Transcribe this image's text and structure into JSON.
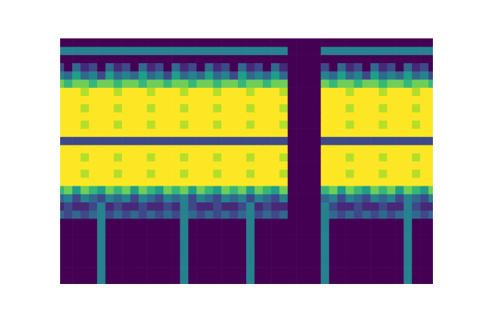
{
  "chart_data": {
    "type": "heatmap",
    "tick_labels": false,
    "grid": false,
    "clim": [
      0,
      9
    ],
    "cells": [
      [
        0,
        0,
        0,
        0,
        0,
        0,
        0,
        0,
        0,
        0,
        0,
        0,
        0,
        0,
        0,
        0,
        0,
        0,
        0,
        0,
        0,
        0,
        0,
        0,
        0,
        0,
        0,
        0,
        0,
        0,
        0,
        0,
        0,
        0,
        0,
        0,
        0,
        0,
        0,
        0,
        0,
        0,
        0,
        0,
        0,
        0
      ],
      [
        4,
        4,
        4,
        4,
        4,
        4,
        4,
        4,
        4,
        4,
        4,
        4,
        4,
        4,
        4,
        4,
        4,
        4,
        4,
        4,
        4,
        4,
        4,
        4,
        4,
        4,
        4,
        4,
        0,
        0,
        0,
        0,
        4,
        4,
        4,
        4,
        4,
        4,
        4,
        4,
        4,
        4,
        4,
        4,
        4,
        4
      ],
      [
        0,
        0,
        0,
        0,
        0,
        0,
        0,
        0,
        0,
        0,
        0,
        0,
        0,
        0,
        0,
        0,
        0,
        0,
        0,
        0,
        0,
        0,
        0,
        0,
        0,
        0,
        0,
        0,
        0,
        0,
        0,
        0,
        0,
        0,
        0,
        0,
        0,
        0,
        0,
        0,
        0,
        0,
        0,
        0,
        0,
        0
      ],
      [
        2,
        0,
        3,
        1,
        2,
        0,
        3,
        1,
        2,
        0,
        3,
        1,
        2,
        0,
        3,
        1,
        2,
        0,
        3,
        1,
        2,
        0,
        3,
        1,
        2,
        0,
        3,
        1,
        0,
        0,
        0,
        0,
        2,
        0,
        3,
        1,
        2,
        0,
        3,
        1,
        2,
        0,
        3,
        1,
        2,
        0
      ],
      [
        4,
        3,
        5,
        3,
        4,
        2,
        5,
        3,
        4,
        3,
        5,
        3,
        4,
        2,
        5,
        3,
        4,
        3,
        5,
        3,
        4,
        2,
        5,
        3,
        4,
        3,
        5,
        3,
        0,
        0,
        0,
        0,
        4,
        3,
        5,
        3,
        4,
        2,
        5,
        3,
        4,
        3,
        5,
        3,
        4,
        2
      ],
      [
        7,
        6,
        7,
        7,
        6,
        7,
        7,
        6,
        7,
        7,
        6,
        7,
        7,
        6,
        7,
        7,
        6,
        7,
        7,
        6,
        7,
        7,
        6,
        7,
        7,
        6,
        7,
        7,
        0,
        0,
        0,
        0,
        7,
        6,
        7,
        7,
        6,
        7,
        7,
        6,
        7,
        7,
        6,
        7,
        7,
        6
      ],
      [
        9,
        9,
        9,
        8,
        9,
        9,
        9,
        8,
        9,
        9,
        9,
        8,
        9,
        9,
        9,
        8,
        9,
        9,
        9,
        8,
        9,
        9,
        9,
        8,
        9,
        9,
        9,
        8,
        0,
        0,
        0,
        0,
        9,
        9,
        9,
        8,
        9,
        9,
        9,
        8,
        9,
        9,
        9,
        8,
        9,
        9
      ],
      [
        9,
        9,
        9,
        9,
        9,
        9,
        9,
        9,
        9,
        9,
        9,
        9,
        9,
        9,
        9,
        9,
        9,
        9,
        9,
        9,
        9,
        9,
        9,
        9,
        9,
        9,
        9,
        9,
        0,
        0,
        0,
        0,
        9,
        9,
        9,
        9,
        9,
        9,
        9,
        9,
        9,
        9,
        9,
        9,
        9,
        9
      ],
      [
        9,
        9,
        9,
        8,
        9,
        9,
        9,
        8,
        9,
        9,
        9,
        8,
        9,
        9,
        9,
        8,
        9,
        9,
        9,
        8,
        9,
        9,
        9,
        8,
        9,
        9,
        9,
        8,
        0,
        0,
        0,
        0,
        9,
        9,
        9,
        8,
        9,
        9,
        9,
        8,
        9,
        9,
        9,
        8,
        9,
        9
      ],
      [
        9,
        9,
        9,
        9,
        9,
        9,
        9,
        9,
        9,
        9,
        9,
        9,
        9,
        9,
        9,
        9,
        9,
        9,
        9,
        9,
        9,
        9,
        9,
        9,
        9,
        9,
        9,
        9,
        0,
        0,
        0,
        0,
        9,
        9,
        9,
        9,
        9,
        9,
        9,
        9,
        9,
        9,
        9,
        9,
        9,
        9
      ],
      [
        9,
        9,
        9,
        8,
        9,
        9,
        9,
        8,
        9,
        9,
        9,
        8,
        9,
        9,
        9,
        8,
        9,
        9,
        9,
        8,
        9,
        9,
        9,
        8,
        9,
        9,
        9,
        8,
        0,
        0,
        0,
        0,
        9,
        9,
        9,
        8,
        9,
        9,
        9,
        8,
        9,
        9,
        9,
        8,
        9,
        9
      ],
      [
        9,
        9,
        9,
        9,
        9,
        9,
        9,
        9,
        9,
        9,
        9,
        9,
        9,
        9,
        9,
        9,
        9,
        9,
        9,
        9,
        9,
        9,
        9,
        9,
        9,
        9,
        9,
        9,
        0,
        0,
        0,
        0,
        9,
        9,
        9,
        9,
        9,
        9,
        9,
        9,
        9,
        9,
        9,
        9,
        9,
        9
      ],
      [
        2,
        2,
        2,
        2,
        2,
        2,
        2,
        2,
        2,
        2,
        2,
        2,
        2,
        2,
        2,
        2,
        2,
        2,
        2,
        2,
        2,
        2,
        2,
        2,
        2,
        2,
        2,
        2,
        0,
        0,
        0,
        0,
        2,
        2,
        2,
        2,
        2,
        2,
        2,
        2,
        2,
        2,
        2,
        2,
        2,
        2
      ],
      [
        9,
        9,
        9,
        9,
        9,
        9,
        9,
        9,
        9,
        9,
        9,
        9,
        9,
        9,
        9,
        9,
        9,
        9,
        9,
        9,
        9,
        9,
        9,
        9,
        9,
        9,
        9,
        9,
        0,
        0,
        0,
        0,
        9,
        9,
        9,
        9,
        9,
        9,
        9,
        9,
        9,
        9,
        9,
        9,
        9,
        9
      ],
      [
        9,
        9,
        9,
        8,
        9,
        9,
        9,
        8,
        9,
        9,
        9,
        8,
        9,
        9,
        9,
        8,
        9,
        9,
        9,
        8,
        9,
        9,
        9,
        8,
        9,
        9,
        9,
        8,
        0,
        0,
        0,
        0,
        9,
        9,
        9,
        8,
        9,
        9,
        9,
        8,
        9,
        9,
        9,
        8,
        9,
        9
      ],
      [
        9,
        9,
        9,
        9,
        9,
        9,
        9,
        9,
        9,
        9,
        9,
        9,
        9,
        9,
        9,
        9,
        9,
        9,
        9,
        9,
        9,
        9,
        9,
        9,
        9,
        9,
        9,
        9,
        0,
        0,
        0,
        0,
        9,
        9,
        9,
        9,
        9,
        9,
        9,
        9,
        9,
        9,
        9,
        9,
        9,
        9
      ],
      [
        9,
        9,
        9,
        8,
        9,
        9,
        9,
        8,
        9,
        9,
        9,
        8,
        9,
        9,
        9,
        8,
        9,
        9,
        9,
        8,
        9,
        9,
        9,
        8,
        9,
        9,
        9,
        8,
        0,
        0,
        0,
        0,
        9,
        9,
        9,
        8,
        9,
        9,
        9,
        8,
        9,
        9,
        9,
        8,
        9,
        9
      ],
      [
        9,
        9,
        9,
        9,
        9,
        9,
        9,
        9,
        9,
        9,
        9,
        9,
        9,
        9,
        9,
        9,
        9,
        9,
        9,
        9,
        9,
        9,
        9,
        9,
        9,
        9,
        9,
        9,
        0,
        0,
        0,
        0,
        9,
        9,
        9,
        9,
        9,
        9,
        9,
        9,
        9,
        9,
        9,
        9,
        9,
        9
      ],
      [
        6,
        7,
        5,
        7,
        6,
        5,
        7,
        6,
        7,
        5,
        7,
        6,
        5,
        7,
        6,
        7,
        5,
        7,
        6,
        5,
        7,
        6,
        7,
        5,
        7,
        6,
        5,
        7,
        0,
        0,
        0,
        0,
        6,
        7,
        5,
        7,
        6,
        5,
        7,
        6,
        7,
        5,
        7,
        6,
        5,
        7
      ],
      [
        3,
        4,
        2,
        4,
        3,
        2,
        4,
        3,
        4,
        2,
        4,
        3,
        2,
        4,
        3,
        4,
        2,
        4,
        3,
        2,
        4,
        3,
        4,
        2,
        4,
        3,
        2,
        4,
        0,
        0,
        0,
        0,
        3,
        4,
        2,
        4,
        3,
        2,
        4,
        3,
        4,
        2,
        4,
        3,
        2,
        4
      ],
      [
        1,
        2,
        1,
        1,
        2,
        4,
        1,
        2,
        1,
        1,
        2,
        1,
        1,
        2,
        1,
        4,
        2,
        1,
        1,
        2,
        1,
        1,
        2,
        4,
        1,
        2,
        1,
        1,
        0,
        0,
        0,
        0,
        4,
        2,
        1,
        1,
        2,
        1,
        1,
        2,
        1,
        1,
        4,
        2,
        1,
        1
      ],
      [
        3,
        2,
        3,
        2,
        3,
        4,
        2,
        3,
        2,
        3,
        2,
        3,
        2,
        3,
        2,
        4,
        3,
        2,
        3,
        2,
        3,
        2,
        3,
        4,
        2,
        3,
        2,
        3,
        0,
        0,
        0,
        0,
        4,
        3,
        2,
        3,
        2,
        3,
        2,
        3,
        2,
        3,
        4,
        3,
        2,
        3
      ],
      [
        0,
        0,
        0,
        0,
        0,
        4,
        0,
        0,
        0,
        0,
        0,
        0,
        0,
        0,
        0,
        4,
        0,
        0,
        0,
        0,
        0,
        0,
        0,
        4,
        0,
        0,
        0,
        0,
        0,
        0,
        0,
        0,
        4,
        0,
        0,
        0,
        0,
        0,
        0,
        0,
        0,
        0,
        4,
        0,
        0,
        0
      ],
      [
        0,
        0,
        0,
        0,
        0,
        4,
        0,
        0,
        0,
        0,
        0,
        0,
        0,
        0,
        0,
        4,
        0,
        0,
        0,
        0,
        0,
        0,
        0,
        4,
        0,
        0,
        0,
        0,
        0,
        0,
        0,
        0,
        4,
        0,
        0,
        0,
        0,
        0,
        0,
        0,
        0,
        0,
        4,
        0,
        0,
        0
      ],
      [
        0,
        0,
        0,
        0,
        0,
        4,
        0,
        0,
        0,
        0,
        0,
        0,
        0,
        0,
        0,
        4,
        0,
        0,
        0,
        0,
        0,
        0,
        0,
        4,
        0,
        0,
        0,
        0,
        0,
        0,
        0,
        0,
        4,
        0,
        0,
        0,
        0,
        0,
        0,
        0,
        0,
        0,
        4,
        0,
        0,
        0
      ],
      [
        0,
        0,
        0,
        0,
        0,
        4,
        0,
        0,
        0,
        0,
        0,
        0,
        0,
        0,
        0,
        4,
        0,
        0,
        0,
        0,
        0,
        0,
        0,
        4,
        0,
        0,
        0,
        0,
        0,
        0,
        0,
        0,
        4,
        0,
        0,
        0,
        0,
        0,
        0,
        0,
        0,
        0,
        4,
        0,
        0,
        0
      ],
      [
        0,
        0,
        0,
        0,
        0,
        4,
        0,
        0,
        0,
        0,
        0,
        0,
        0,
        0,
        0,
        4,
        0,
        0,
        0,
        0,
        0,
        0,
        0,
        4,
        0,
        0,
        0,
        0,
        0,
        0,
        0,
        0,
        4,
        0,
        0,
        0,
        0,
        0,
        0,
        0,
        0,
        0,
        4,
        0,
        0,
        0
      ],
      [
        0,
        0,
        0,
        0,
        0,
        4,
        0,
        0,
        0,
        0,
        0,
        0,
        0,
        0,
        0,
        4,
        0,
        0,
        0,
        0,
        0,
        0,
        0,
        4,
        0,
        0,
        0,
        0,
        0,
        0,
        0,
        0,
        4,
        0,
        0,
        0,
        0,
        0,
        0,
        0,
        0,
        0,
        4,
        0,
        0,
        0
      ],
      [
        0,
        0,
        0,
        0,
        0,
        4,
        0,
        0,
        0,
        0,
        0,
        0,
        0,
        0,
        0,
        4,
        0,
        0,
        0,
        0,
        0,
        0,
        0,
        4,
        0,
        0,
        0,
        0,
        0,
        0,
        0,
        0,
        4,
        0,
        0,
        0,
        0,
        0,
        0,
        0,
        0,
        0,
        4,
        0,
        0,
        0
      ],
      [
        0,
        0,
        0,
        0,
        0,
        4,
        0,
        0,
        0,
        0,
        0,
        0,
        0,
        0,
        0,
        4,
        0,
        0,
        0,
        0,
        0,
        0,
        0,
        4,
        0,
        0,
        0,
        0,
        0,
        0,
        0,
        0,
        4,
        0,
        0,
        0,
        0,
        0,
        0,
        0,
        0,
        0,
        4,
        0,
        0,
        0
      ]
    ]
  }
}
